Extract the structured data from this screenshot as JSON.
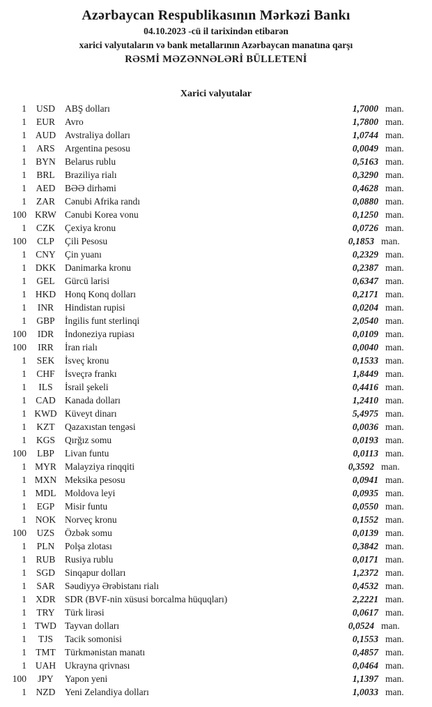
{
  "header": {
    "title": "Azərbaycan Respublikasının Mərkəzi Bankı",
    "date_line": "04.10.2023 -cü il tarixindən etibarən",
    "subtitle": "xarici valyutaların və bank metallarının Azərbaycan manatına qarşı",
    "bulletin_title": "RƏSMİ MƏZƏNNƏLƏRİ BÜLLETENİ"
  },
  "section": {
    "title": "Xarici valyutalar"
  },
  "unit_label": "man.",
  "rates": [
    {
      "qty": "1",
      "code": "USD",
      "name": "ABŞ dolları",
      "rate": "1,7000"
    },
    {
      "qty": "1",
      "code": "EUR",
      "name": "Avro",
      "rate": "1,7800"
    },
    {
      "qty": "1",
      "code": "AUD",
      "name": "Avstraliya dolları",
      "rate": "1,0744"
    },
    {
      "qty": "1",
      "code": "ARS",
      "name": "Argentina pesosu",
      "rate": "0,0049"
    },
    {
      "qty": "1",
      "code": "BYN",
      "name": "Belarus rublu",
      "rate": "0,5163"
    },
    {
      "qty": "1",
      "code": "BRL",
      "name": "Braziliya rialı",
      "rate": "0,3290"
    },
    {
      "qty": "1",
      "code": "AED",
      "name": "BƏƏ dirhəmi",
      "rate": "0,4628"
    },
    {
      "qty": "1",
      "code": "ZAR",
      "name": "Cənubi Afrika randı",
      "rate": "0,0880"
    },
    {
      "qty": "100",
      "code": "KRW",
      "name": "Cənubi Korea vonu",
      "rate": "0,1250"
    },
    {
      "qty": "1",
      "code": "CZK",
      "name": "Çexiya kronu",
      "rate": "0,0726"
    },
    {
      "qty": "100",
      "code": "CLP",
      "name": "Çili Pesosu",
      "rate": "0,1853",
      "shift": true
    },
    {
      "qty": "1",
      "code": "CNY",
      "name": "Çin yuanı",
      "rate": "0,2329"
    },
    {
      "qty": "1",
      "code": "DKK",
      "name": "Danimarka kronu",
      "rate": "0,2387"
    },
    {
      "qty": "1",
      "code": "GEL",
      "name": "Gürcü larisi",
      "rate": "0,6347"
    },
    {
      "qty": "1",
      "code": "HKD",
      "name": "Honq Konq dolları",
      "rate": "0,2171"
    },
    {
      "qty": "1",
      "code": "INR",
      "name": "Hindistan rupisi",
      "rate": "0,0204"
    },
    {
      "qty": "1",
      "code": "GBP",
      "name": "İngilis funt sterlinqi",
      "rate": "2,0540"
    },
    {
      "qty": "100",
      "code": "IDR",
      "name": "İndoneziya rupiası",
      "rate": "0,0109"
    },
    {
      "qty": "100",
      "code": "IRR",
      "name": "İran rialı",
      "rate": "0,0040"
    },
    {
      "qty": "1",
      "code": "SEK",
      "name": "İsveç kronu",
      "rate": "0,1533"
    },
    {
      "qty": "1",
      "code": "CHF",
      "name": "İsveçrə frankı",
      "rate": "1,8449"
    },
    {
      "qty": "1",
      "code": "ILS",
      "name": "İsrail şekeli",
      "rate": "0,4416"
    },
    {
      "qty": "1",
      "code": "CAD",
      "name": "Kanada dolları",
      "rate": "1,2410"
    },
    {
      "qty": "1",
      "code": "KWD",
      "name": "Küveyt dinarı",
      "rate": "5,4975"
    },
    {
      "qty": "1",
      "code": "KZT",
      "name": "Qazaxıstan tengəsi",
      "rate": "0,0036"
    },
    {
      "qty": "1",
      "code": "KGS",
      "name": "Qırğız somu",
      "rate": "0,0193"
    },
    {
      "qty": "100",
      "code": "LBP",
      "name": "Livan funtu",
      "rate": "0,0113"
    },
    {
      "qty": "1",
      "code": "MYR",
      "name": "Malayziya rinqqiti",
      "rate": "0,3592",
      "shift": true
    },
    {
      "qty": "1",
      "code": "MXN",
      "name": "Meksika pesosu",
      "rate": "0,0941"
    },
    {
      "qty": "1",
      "code": "MDL",
      "name": "Moldova leyi",
      "rate": "0,0935"
    },
    {
      "qty": "1",
      "code": "EGP",
      "name": "Misir funtu",
      "rate": "0,0550"
    },
    {
      "qty": "1",
      "code": "NOK",
      "name": "Norveç kronu",
      "rate": "0,1552"
    },
    {
      "qty": "100",
      "code": "UZS",
      "name": "Özbək somu",
      "rate": "0,0139"
    },
    {
      "qty": "1",
      "code": "PLN",
      "name": "Polşa zlotası",
      "rate": "0,3842"
    },
    {
      "qty": "1",
      "code": "RUB",
      "name": "Rusiya rublu",
      "rate": "0,0171"
    },
    {
      "qty": "1",
      "code": "SGD",
      "name": "Sinqapur dolları",
      "rate": "1,2372"
    },
    {
      "qty": "1",
      "code": "SAR",
      "name": "Səudiyyə Ərəbistanı rialı",
      "rate": "0,4532"
    },
    {
      "qty": "1",
      "code": "XDR",
      "name": "SDR (BVF-nin xüsusi borcalma hüquqları)",
      "rate": "2,2221"
    },
    {
      "qty": "1",
      "code": "TRY",
      "name": "Türk lirəsi",
      "rate": "0,0617"
    },
    {
      "qty": "1",
      "code": "TWD",
      "name": "Tayvan dolları",
      "rate": "0,0524",
      "shift": true
    },
    {
      "qty": "1",
      "code": "TJS",
      "name": "Tacik somonisi",
      "rate": "0,1553"
    },
    {
      "qty": "1",
      "code": "TMT",
      "name": "Türkmənistan manatı",
      "rate": "0,4857"
    },
    {
      "qty": "1",
      "code": "UAH",
      "name": "Ukrayna qrivnası",
      "rate": "0,0464"
    },
    {
      "qty": "100",
      "code": "JPY",
      "name": "Yapon yeni",
      "rate": "1,1397"
    },
    {
      "qty": "1",
      "code": "NZD",
      "name": "Yeni Zelandiya dolları",
      "rate": "1,0033"
    }
  ]
}
